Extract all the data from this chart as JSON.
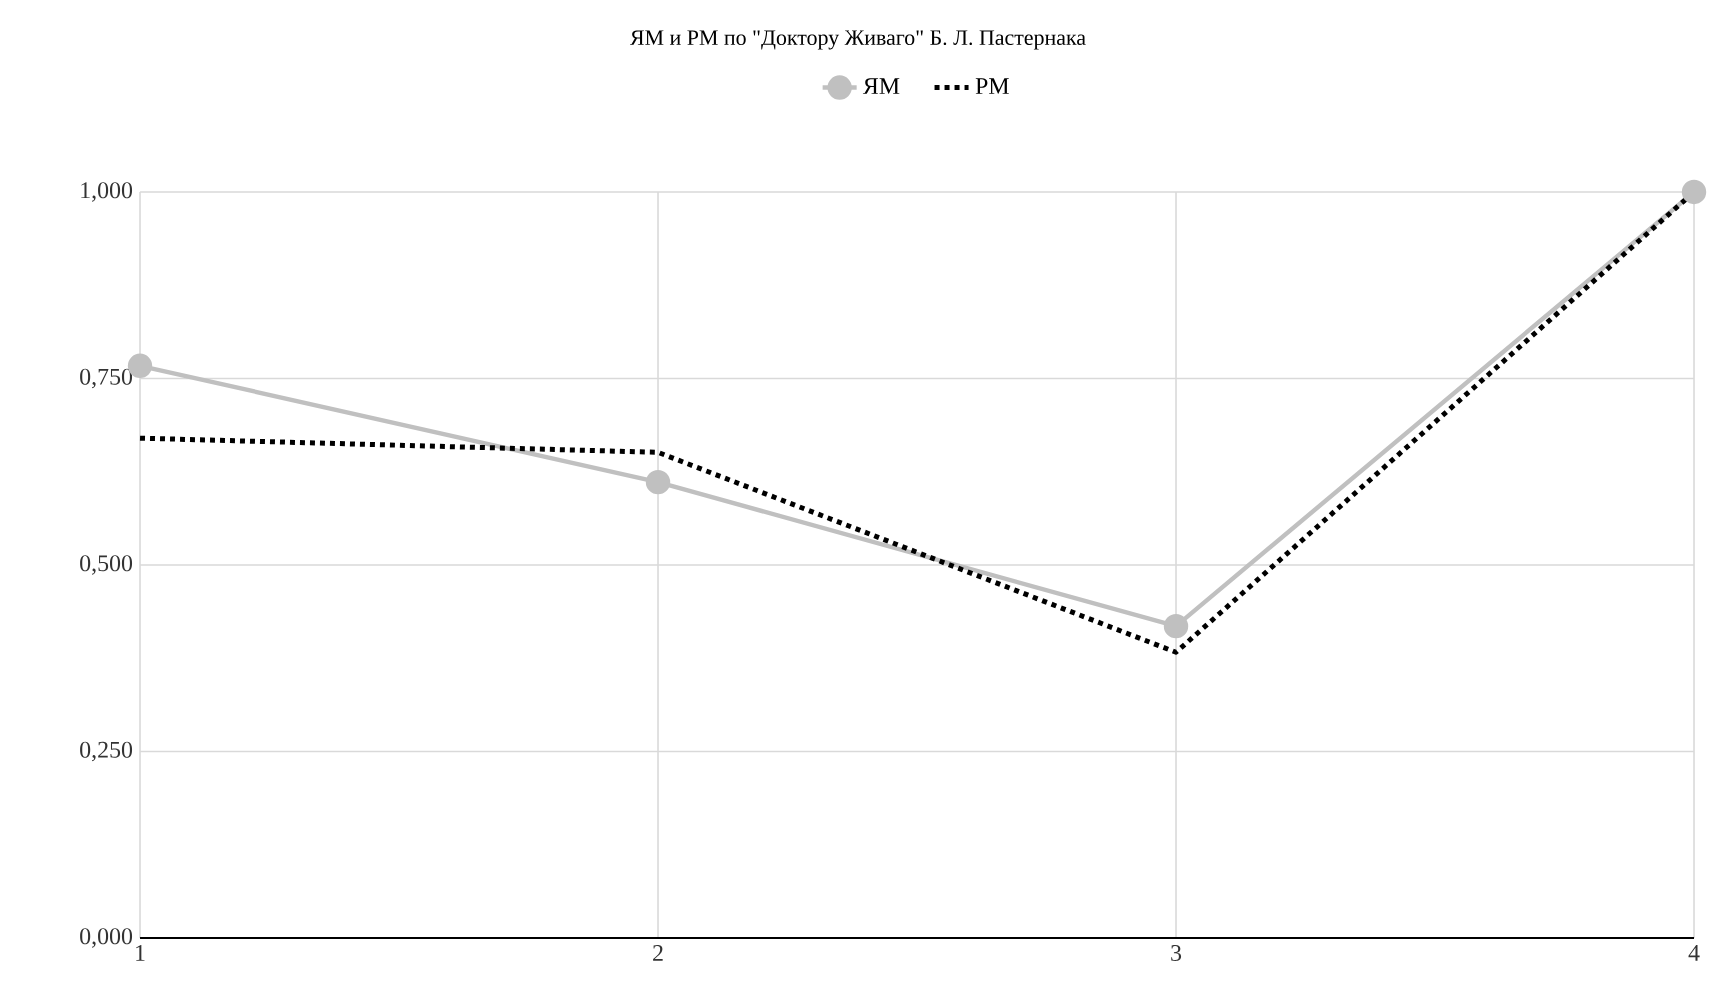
{
  "chart_data": {
    "type": "line",
    "title": "ЯМ и РМ по \"Доктору Живаго\" Б. Л. Пастернака",
    "categories": [
      "1",
      "2",
      "3",
      "4"
    ],
    "series": [
      {
        "name": "ЯМ",
        "color": "#c0c0c0",
        "values": [
          0.767,
          0.611,
          0.418,
          1.0
        ],
        "marker": "circle",
        "line_style": "solid"
      },
      {
        "name": "РМ",
        "color": "#000000",
        "values": [
          0.67,
          0.651,
          0.383,
          1.0
        ],
        "marker": "none",
        "line_style": "dotted"
      }
    ],
    "ylim": [
      0,
      1
    ],
    "yticks": [
      {
        "value": 0,
        "label": "0,000"
      },
      {
        "value": 0.25,
        "label": "0,250"
      },
      {
        "value": 0.5,
        "label": "0,500"
      },
      {
        "value": 0.75,
        "label": "0,750"
      },
      {
        "value": 1,
        "label": "1,000"
      }
    ],
    "grid": true,
    "legend": "top"
  }
}
